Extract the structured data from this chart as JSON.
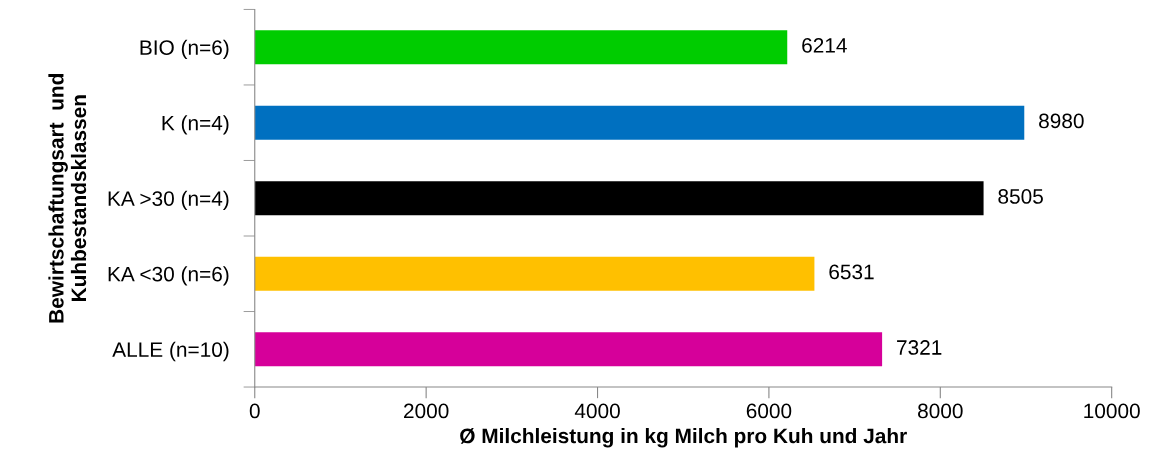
{
  "chart_data": {
    "type": "bar",
    "orientation": "horizontal",
    "categories": [
      "BIO (n=6)",
      "K (n=4)",
      "KA >30 (n=4)",
      "KA <30 (n=6)",
      "ALLE (n=10)"
    ],
    "values": [
      6214,
      8980,
      8505,
      6531,
      7321
    ],
    "colors": [
      "#00cc00",
      "#0070c0",
      "#000000",
      "#ffc000",
      "#d6009a"
    ],
    "xlabel": "Ø Milchleistung in kg Milch pro Kuh und Jahr",
    "ylabel": "Bewirtschaftungsart  und\nKuhbestandsklassen",
    "xlim": [
      0,
      10000
    ],
    "xticks": [
      0,
      2000,
      4000,
      6000,
      8000,
      10000
    ],
    "data_labels": true,
    "grid": false,
    "legend": false
  }
}
